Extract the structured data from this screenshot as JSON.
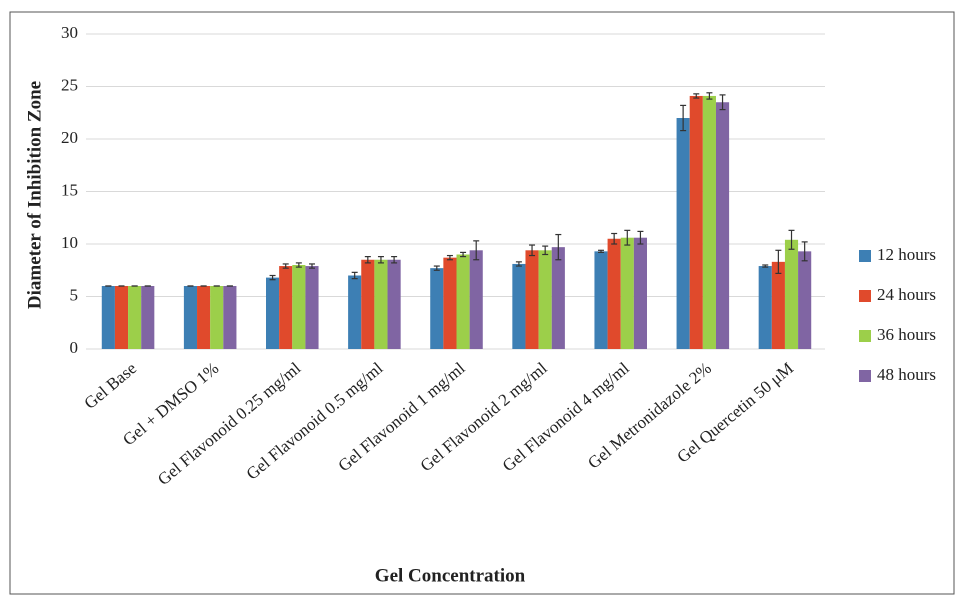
{
  "chart_data": {
    "type": "bar",
    "y_label": "Diameter of Inhibition Zone",
    "x_label": "Gel Concentration",
    "categories": [
      "Gel Base",
      "Gel + DMSO 1%",
      "Gel Flavonoid 0.25 mg/ml",
      "Gel Flavonoid 0.5 mg/ml",
      "Gel Flavonoid 1 mg/ml",
      "Gel Flavonoid 2 mg/ml",
      "Gel Flavonoid 4 mg/ml",
      "Gel Metronidazole 2%",
      "Gel Quercetin 50 μM"
    ],
    "series": [
      {
        "name": "12 hours",
        "color": "#3d7fb4",
        "values": [
          6,
          6,
          6.8,
          7.0,
          7.7,
          8.1,
          9.3,
          22.0,
          7.9
        ],
        "errors": [
          0,
          0,
          0.2,
          0.3,
          0.2,
          0.2,
          0.1,
          1.2,
          0.1
        ]
      },
      {
        "name": "24 hours",
        "color": "#e04a2c",
        "values": [
          6,
          6,
          7.9,
          8.5,
          8.7,
          9.4,
          10.5,
          24.1,
          8.3
        ],
        "errors": [
          0,
          0,
          0.2,
          0.3,
          0.2,
          0.5,
          0.5,
          0.2,
          1.1
        ]
      },
      {
        "name": "36 hours",
        "color": "#9ccf4a",
        "values": [
          6,
          6,
          8.0,
          8.5,
          9.0,
          9.4,
          10.6,
          24.1,
          10.4
        ],
        "errors": [
          0,
          0,
          0.2,
          0.3,
          0.2,
          0.4,
          0.7,
          0.3,
          0.9
        ]
      },
      {
        "name": "48 hours",
        "color": "#8065a3",
        "values": [
          6,
          6,
          7.9,
          8.5,
          9.4,
          9.7,
          10.6,
          23.5,
          9.3
        ],
        "errors": [
          0,
          0,
          0.2,
          0.3,
          0.9,
          1.2,
          0.6,
          0.7,
          0.9
        ]
      }
    ],
    "ylim": [
      0,
      30
    ],
    "yticks": [
      0,
      5,
      10,
      15,
      20,
      25,
      30
    ],
    "grid": true,
    "legend": "right"
  }
}
